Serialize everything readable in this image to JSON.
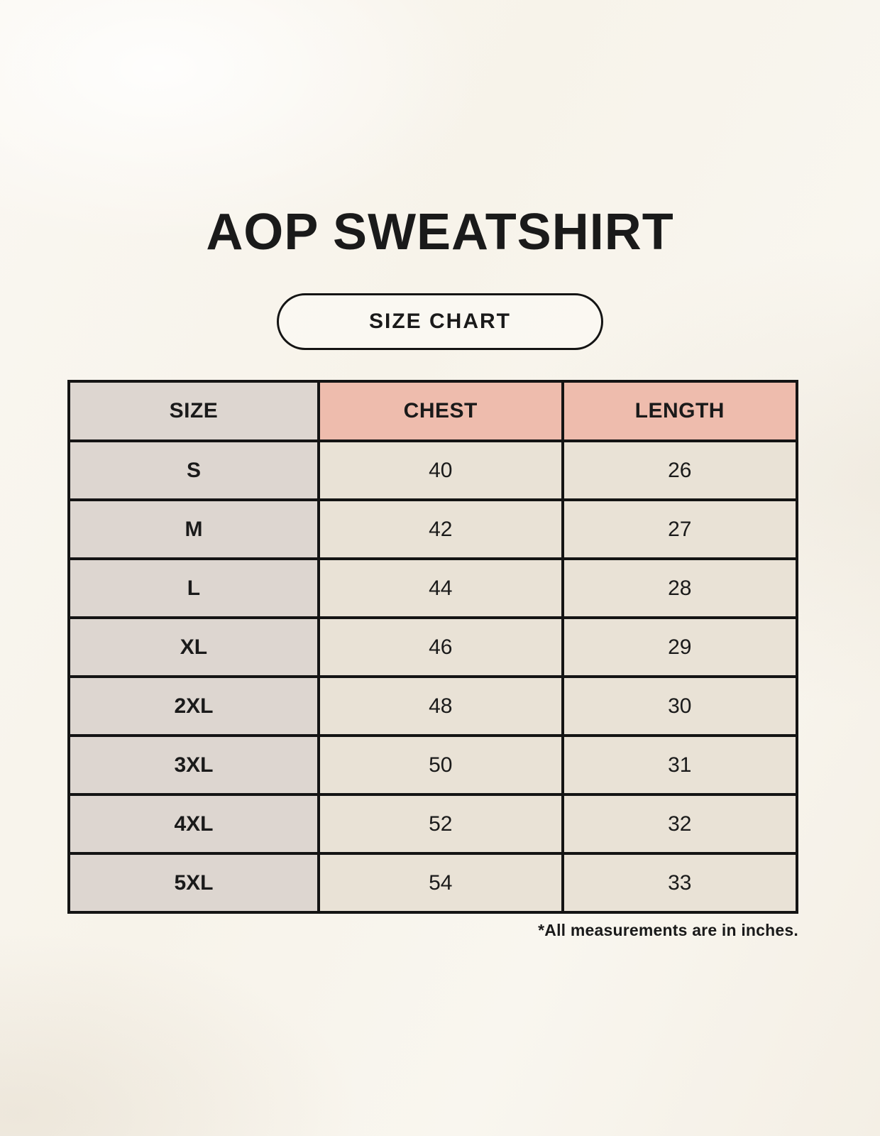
{
  "header": {
    "title": "AOP SWEATSHIRT",
    "badge_label": "SIZE CHART"
  },
  "footnote": "*All measurements are in inches.",
  "chart_data": {
    "type": "table",
    "title": "AOP SWEATSHIRT - SIZE CHART",
    "columns": [
      "SIZE",
      "CHEST",
      "LENGTH"
    ],
    "rows": [
      [
        "S",
        "40",
        "26"
      ],
      [
        "M",
        "42",
        "27"
      ],
      [
        "L",
        "44",
        "28"
      ],
      [
        "XL",
        "46",
        "29"
      ],
      [
        "2XL",
        "48",
        "30"
      ],
      [
        "3XL",
        "50",
        "31"
      ],
      [
        "4XL",
        "52",
        "32"
      ],
      [
        "5XL",
        "54",
        "33"
      ]
    ],
    "units": "inches"
  },
  "colors": {
    "page_background": "#f8f5ee",
    "size_column_background": "#ddd6d0",
    "header_accent_background": "#eebcad",
    "cell_background": "#e9e2d6",
    "border": "#141414",
    "text": "#1a1a1a"
  }
}
